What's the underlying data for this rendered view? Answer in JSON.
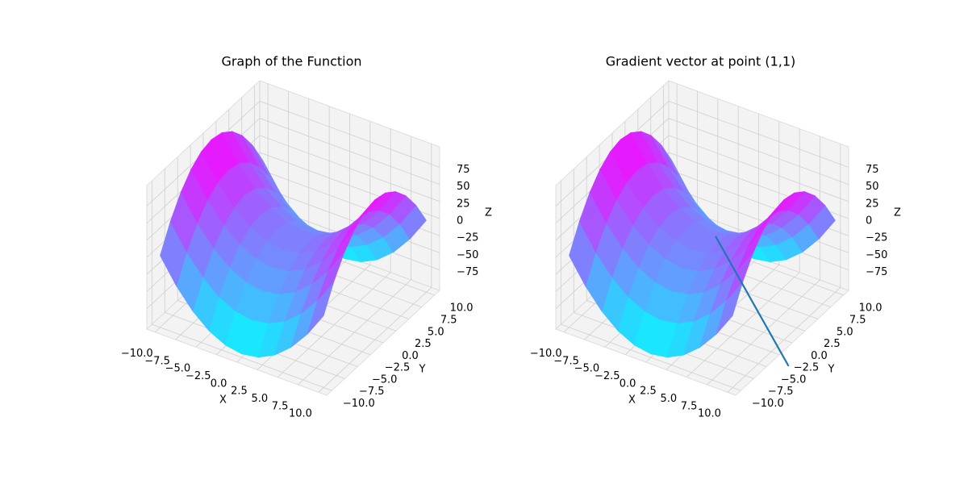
{
  "chart_data": [
    {
      "type": "surface",
      "title": "Graph of the Function",
      "xlabel": "X",
      "ylabel": "Y",
      "zlabel": "Z",
      "colormap": [
        "#00ffff",
        "#ff00ff"
      ],
      "x": [
        -10,
        -8,
        -6,
        -4,
        -2,
        0,
        2,
        4,
        6,
        8,
        10
      ],
      "y": [
        -10,
        -8,
        -6,
        -4,
        -2,
        0,
        2,
        4,
        6,
        8,
        10
      ],
      "z": [
        [
          0,
          -36,
          -64,
          -84,
          -96,
          -100,
          -96,
          -84,
          -64,
          -36,
          0
        ],
        [
          36,
          0,
          -28,
          -48,
          -60,
          -64,
          -60,
          -48,
          -28,
          0,
          36
        ],
        [
          64,
          28,
          0,
          -20,
          -32,
          -36,
          -32,
          -20,
          0,
          28,
          64
        ],
        [
          84,
          48,
          20,
          0,
          -12,
          -16,
          -12,
          0,
          20,
          48,
          84
        ],
        [
          96,
          60,
          32,
          12,
          0,
          -4,
          0,
          12,
          32,
          60,
          96
        ],
        [
          100,
          64,
          36,
          16,
          4,
          0,
          4,
          16,
          36,
          64,
          100
        ],
        [
          96,
          60,
          32,
          12,
          0,
          -4,
          0,
          12,
          32,
          60,
          96
        ],
        [
          84,
          48,
          20,
          0,
          -12,
          -16,
          -12,
          0,
          20,
          48,
          84
        ],
        [
          64,
          28,
          0,
          -20,
          -32,
          -36,
          -32,
          -20,
          0,
          28,
          64
        ],
        [
          36,
          0,
          -28,
          -48,
          -60,
          -64,
          -60,
          -48,
          -28,
          0,
          36
        ],
        [
          0,
          -36,
          -64,
          -84,
          -96,
          -100,
          -96,
          -84,
          -64,
          -36,
          0
        ]
      ],
      "xlim": [
        -11,
        11
      ],
      "ylim": [
        -11,
        11
      ],
      "zlim": [
        -105,
        105
      ],
      "xticks": [
        {
          "value": -10,
          "label": "−10.0"
        },
        {
          "value": -7.5,
          "label": "−7.5"
        },
        {
          "value": -5,
          "label": "−5.0"
        },
        {
          "value": -2.5,
          "label": "−2.5"
        },
        {
          "value": 0,
          "label": "0.0"
        },
        2.5,
        {
          "value": 5,
          "label": "5.0"
        },
        7.5,
        {
          "value": 10,
          "label": "10.0"
        }
      ],
      "yticks": [
        {
          "value": -10,
          "label": "−10.0"
        },
        {
          "value": -7.5,
          "label": "−7.5"
        },
        {
          "value": -5,
          "label": "−5.0"
        },
        {
          "value": -2.5,
          "label": "−2.5"
        },
        {
          "value": 0,
          "label": "0.0"
        },
        2.5,
        {
          "value": 5,
          "label": "5.0"
        },
        7.5,
        {
          "value": 10,
          "label": "10.0"
        }
      ],
      "zticks": [
        {
          "value": -75,
          "label": "−75"
        },
        {
          "value": -50,
          "label": "−50"
        },
        {
          "value": -25,
          "label": "−25"
        },
        0,
        25,
        50,
        75
      ]
    },
    {
      "type": "surface",
      "title": "Gradient vector at point (1,1)",
      "xlabel": "X",
      "ylabel": "Y",
      "zlabel": "Z",
      "colormap": [
        "#00ffff",
        "#ff00ff"
      ],
      "x": [
        -10,
        -8,
        -6,
        -4,
        -2,
        0,
        2,
        4,
        6,
        8,
        10
      ],
      "y": [
        -10,
        -8,
        -6,
        -4,
        -2,
        0,
        2,
        4,
        6,
        8,
        10
      ],
      "z": [
        [
          0,
          -36,
          -64,
          -84,
          -96,
          -100,
          -96,
          -84,
          -64,
          -36,
          0
        ],
        [
          36,
          0,
          -28,
          -48,
          -60,
          -64,
          -60,
          -48,
          -28,
          0,
          36
        ],
        [
          64,
          28,
          0,
          -20,
          -32,
          -36,
          -32,
          -20,
          0,
          28,
          64
        ],
        [
          84,
          48,
          20,
          0,
          -12,
          -16,
          -12,
          0,
          20,
          48,
          84
        ],
        [
          96,
          60,
          32,
          12,
          0,
          -4,
          0,
          12,
          32,
          60,
          96
        ],
        [
          100,
          64,
          36,
          16,
          4,
          0,
          4,
          16,
          36,
          64,
          100
        ],
        [
          96,
          60,
          32,
          12,
          0,
          -4,
          0,
          12,
          32,
          60,
          96
        ],
        [
          84,
          48,
          20,
          0,
          -12,
          -16,
          -12,
          0,
          20,
          48,
          84
        ],
        [
          64,
          28,
          0,
          -20,
          -32,
          -36,
          -32,
          -20,
          0,
          28,
          64
        ],
        [
          36,
          0,
          -28,
          -48,
          -60,
          -64,
          -60,
          -48,
          -28,
          0,
          36
        ],
        [
          0,
          -36,
          -64,
          -84,
          -96,
          -100,
          -96,
          -84,
          -64,
          -36,
          0
        ]
      ],
      "vector": {
        "start": [
          1,
          1,
          0
        ],
        "end": [
          25,
          -23,
          83
        ],
        "color": "#1f77b4"
      },
      "xlim": [
        -11,
        11
      ],
      "ylim": [
        -11,
        11
      ],
      "zlim": [
        -105,
        105
      ],
      "xticks": [
        {
          "value": -10,
          "label": "−10.0"
        },
        {
          "value": -7.5,
          "label": "−7.5"
        },
        {
          "value": -5,
          "label": "−5.0"
        },
        {
          "value": -2.5,
          "label": "−2.5"
        },
        {
          "value": 0,
          "label": "0.0"
        },
        2.5,
        {
          "value": 5,
          "label": "5.0"
        },
        7.5,
        {
          "value": 10,
          "label": "10.0"
        }
      ],
      "yticks": [
        {
          "value": -10,
          "label": "−10.0"
        },
        {
          "value": -7.5,
          "label": "−7.5"
        },
        {
          "value": -5,
          "label": "−5.0"
        },
        {
          "value": -2.5,
          "label": "−2.5"
        },
        {
          "value": 0,
          "label": "0.0"
        },
        2.5,
        {
          "value": 5,
          "label": "5.0"
        },
        7.5,
        {
          "value": 10,
          "label": "10.0"
        }
      ],
      "zticks": [
        {
          "value": -75,
          "label": "−75"
        },
        {
          "value": -50,
          "label": "−50"
        },
        {
          "value": -25,
          "label": "−25"
        },
        0,
        25,
        50,
        75
      ]
    }
  ]
}
